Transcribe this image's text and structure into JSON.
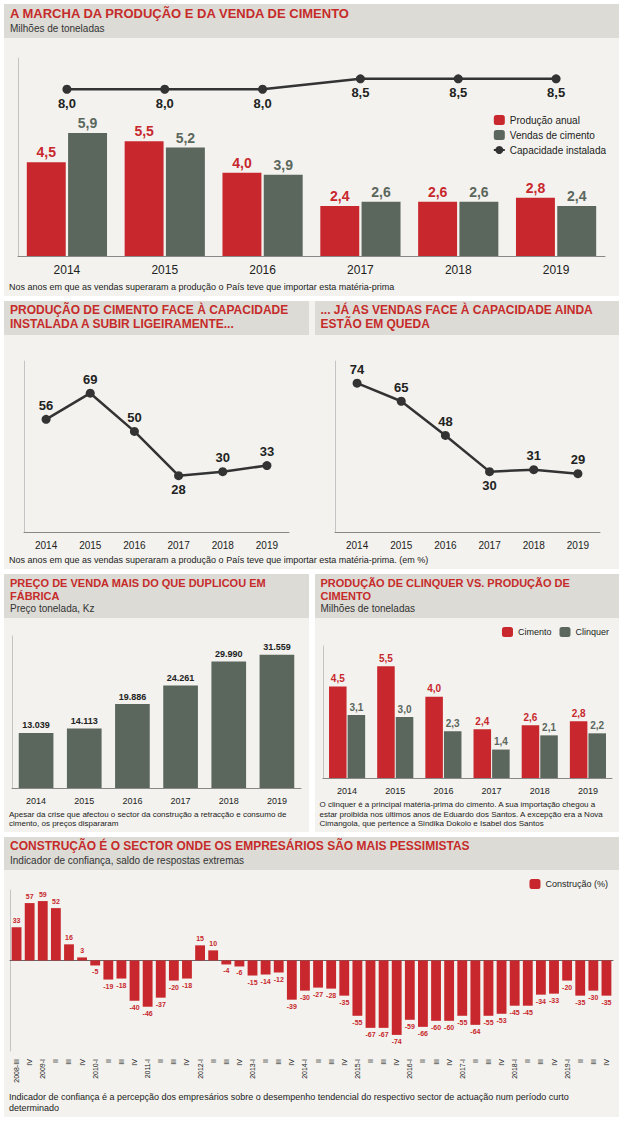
{
  "chart_data": [
    {
      "type": "bar",
      "title": "A MARCHA DA PRODUÇÃO E DA VENDA DE CIMENTO",
      "subtitle": "Milhões de toneladas",
      "note": "Nos anos em que as vendas superaram a produção o País teve que importar esta matéria-prima",
      "categories": [
        "2014",
        "2015",
        "2016",
        "2017",
        "2018",
        "2019"
      ],
      "series": [
        {
          "name": "Produção anual",
          "type": "bar",
          "color": "#c8282d",
          "values": [
            4.5,
            5.5,
            4.0,
            2.4,
            2.6,
            2.8
          ],
          "value_labels": [
            "4,5",
            "5,5",
            "4,0",
            "2,4",
            "2,6",
            "2,8"
          ]
        },
        {
          "name": "Vendas de cimento",
          "type": "bar",
          "color": "#5b675d",
          "values": [
            5.9,
            5.2,
            3.9,
            2.6,
            2.6,
            2.4
          ],
          "value_labels": [
            "5,9",
            "5,2",
            "3,9",
            "2,6",
            "2,6",
            "2,4"
          ]
        },
        {
          "name": "Capacidade instalada",
          "type": "line",
          "color": "#333333",
          "marker": "circle",
          "line_style": "solid",
          "values": [
            8.0,
            8.0,
            8.0,
            8.5,
            8.5,
            8.5
          ],
          "value_labels": [
            "8,0",
            "8,0",
            "8,0",
            "8,5",
            "8,5",
            "8,5"
          ]
        }
      ],
      "ylim": [
        0,
        9.5
      ],
      "legend": "right",
      "data_labels": true,
      "tick_labels": "x",
      "grid": false
    },
    {
      "type": "line",
      "title": "PRODUÇÃO DE CIMENTO FACE À CAPACIDADE INSTALADA A SUBIR LIGEIRAMENTE...",
      "note": "Nos anos em que as vendas superaram a produção o País teve que importar esta matéria-prima. (em %)",
      "categories": [
        "2014",
        "2015",
        "2016",
        "2017",
        "2018",
        "2019"
      ],
      "values": [
        56,
        69,
        50,
        28,
        30,
        33
      ],
      "color": "#333333",
      "marker": "circle",
      "line_style": "solid",
      "ylim": [
        0,
        85
      ],
      "data_labels": true,
      "tick_labels": "x",
      "grid": false
    },
    {
      "type": "line",
      "title": "... JÁ AS VENDAS FACE À CAPACIDADE AINDA ESTÃO EM QUEDA",
      "categories": [
        "2014",
        "2015",
        "2016",
        "2017",
        "2018",
        "2019"
      ],
      "values": [
        74,
        65,
        48,
        30,
        31,
        29
      ],
      "color": "#333333",
      "marker": "circle",
      "line_style": "solid",
      "ylim": [
        0,
        85
      ],
      "data_labels": true,
      "tick_labels": "x",
      "grid": false
    },
    {
      "type": "bar",
      "title": "PREÇO DE VENDA MAIS DO QUE DUPLICOU EM FÁBRICA",
      "subtitle": "Preço tonelada, Kz",
      "note": "Apesar da crise que afectou o sector da construção a retracção e consumo de cimento, os preços dispararam",
      "categories": [
        "2014",
        "2015",
        "2016",
        "2017",
        "2018",
        "2019"
      ],
      "values": [
        13039,
        14113,
        19886,
        24261,
        29990,
        31559
      ],
      "value_labels": [
        "13.039",
        "14.113",
        "19.886",
        "24.261",
        "29.990",
        "31.559"
      ],
      "color": "#5b675d",
      "ylim": [
        0,
        36000
      ],
      "data_labels": true,
      "tick_labels": "x",
      "grid": false
    },
    {
      "type": "bar",
      "title": "PRODUÇÃO DE CLINQUER VS. PRODUÇÃO DE CIMENTO",
      "subtitle": "Milhões de toneladas",
      "note": "O clinquer é a principal matéria-prima do cimento. A sua importação chegou a estar proibida nos últimos anos de Eduardo dos Santos. A excepção era a Nova Cimangola, que pertence a Sindika Dokolo e Isabel dos Santos",
      "categories": [
        "2014",
        "2015",
        "2016",
        "2017",
        "2018",
        "2019"
      ],
      "series": [
        {
          "name": "Cimento",
          "color": "#c8282d",
          "values": [
            4.5,
            5.5,
            4.0,
            2.4,
            2.6,
            2.8
          ],
          "value_labels": [
            "4,5",
            "5,5",
            "4,0",
            "2,4",
            "2,6",
            "2,8"
          ]
        },
        {
          "name": "Clinquer",
          "color": "#5b675d",
          "values": [
            3.1,
            3.0,
            2.3,
            1.4,
            2.1,
            2.2
          ],
          "value_labels": [
            "3,1",
            "3,0",
            "2,3",
            "1,4",
            "2,1",
            "2,2"
          ]
        }
      ],
      "ylim": [
        0,
        6.5
      ],
      "legend": "top-right",
      "data_labels": true,
      "tick_labels": "x",
      "grid": false
    },
    {
      "type": "bar",
      "title": "CONSTRUÇÃO É O SECTOR ONDE OS EMPRESÁRIOS SÃO MAIS PESSIMISTAS",
      "subtitle": "Indicador de confiança, saldo de respostas extremas",
      "note": "Indicador de confiança é a percepção dos empresários sobre o desempenho tendencial do respectivo sector de actuação num período curto determinado",
      "categories": [
        "2008-III",
        "IV",
        "2009-I",
        "II",
        "III",
        "IV",
        "2010-I",
        "II",
        "III",
        "IV",
        "2011-I",
        "II",
        "III",
        "IV",
        "2012-I",
        "II",
        "III",
        "IV",
        "2013-I",
        "II",
        "III",
        "IV",
        "2014-I",
        "II",
        "III",
        "IV",
        "2015-I",
        "II",
        "III",
        "IV",
        "2016-I",
        "II",
        "III",
        "IV",
        "2017-I",
        "II",
        "III",
        "IV",
        "2018-I",
        "II",
        "III",
        "IV",
        "2019-I",
        "II",
        "III",
        "IV"
      ],
      "series": [
        {
          "name": "Construção (%)",
          "color": "#c8282d",
          "values": [
            33,
            57,
            59,
            52,
            16,
            3,
            -5,
            -19,
            -18,
            -40,
            -46,
            -37,
            -20,
            -18,
            15,
            10,
            -4,
            -6,
            -15,
            -14,
            -12,
            -39,
            -30,
            -27,
            -28,
            -35,
            -55,
            -67,
            -67,
            -74,
            -59,
            -66,
            -60,
            -60,
            -55,
            -64,
            -55,
            -53,
            -45,
            -45,
            -34,
            -33,
            -20,
            -35,
            -30,
            -35
          ]
        }
      ],
      "ylim": [
        -90,
        70
      ],
      "legend": "top-right",
      "data_labels": true,
      "tick_labels": "x",
      "grid": false
    }
  ]
}
